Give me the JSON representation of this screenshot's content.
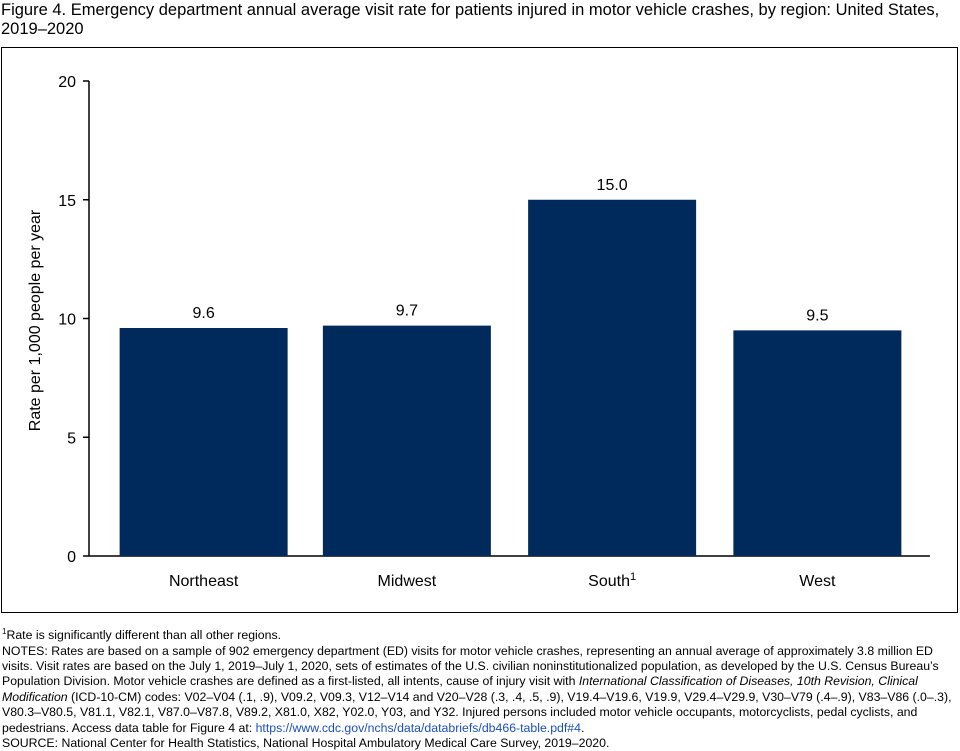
{
  "figure": {
    "title": "Figure 4. Emergency department annual average visit rate for patients injured in motor vehicle crashes, by region: United States, 2019–2020"
  },
  "chart_data": {
    "type": "bar",
    "categories": [
      "Northeast",
      "Midwest",
      "South",
      "West"
    ],
    "category_superscripts": [
      "",
      "",
      "1",
      ""
    ],
    "values": [
      9.6,
      9.7,
      15.0,
      9.5
    ],
    "value_labels": [
      "9.6",
      "9.7",
      "15.0",
      "9.5"
    ],
    "ylabel": "Rate per 1,000 people per year",
    "ylim": [
      0,
      20
    ],
    "yticks": [
      0,
      5,
      10,
      15,
      20
    ],
    "bar_color": "#002a5c",
    "grid": false
  },
  "notes": {
    "footnote_marker": "1",
    "footnote_text": "Rate is significantly different than all other regions.",
    "notes_part1": "NOTES: Rates are based on a sample of 902 emergency department (ED) visits for motor vehicle crashes, representing an annual average of approximately 3.8 million ED visits. Visit rates are based on the July 1, 2019–July 1, 2020, sets of estimates of the U.S. civilian noninstitutionalized population, as developed by the U.S. Census Bureau’s Population Division. Motor vehicle crashes are defined as a first-listed, all intents, cause of injury visit with ",
    "notes_italic": "International Classification of Diseases, 10th Revision, Clinical Modification",
    "notes_part2": " (ICD-10-CM) codes: V02–V04 (.1, .9), V09.2, V09.3, V12–V14 and V20–V28 (.3, .4, .5, .9), V19.4–V19.6, V19.9, V29.4–V29.9, V30–V79 (.4–.9), V83–V86 (.0–.3), V80.3–V80.5, V81.1, V82.1, V87.0–V87.8, V89.2, X81.0, X82, Y02.0, Y03, and Y32. Injured persons included motor vehicle occupants, motorcyclists, pedal cyclists, and pedestrians. Access data table for Figure 4 at: ",
    "link_text": "https://www.cdc.gov/nchs/data/databriefs/db466-table.pdf#4",
    "notes_end": ".",
    "source": "SOURCE: National Center for Health Statistics, National Hospital Ambulatory Medical Care Survey, 2019–2020."
  }
}
